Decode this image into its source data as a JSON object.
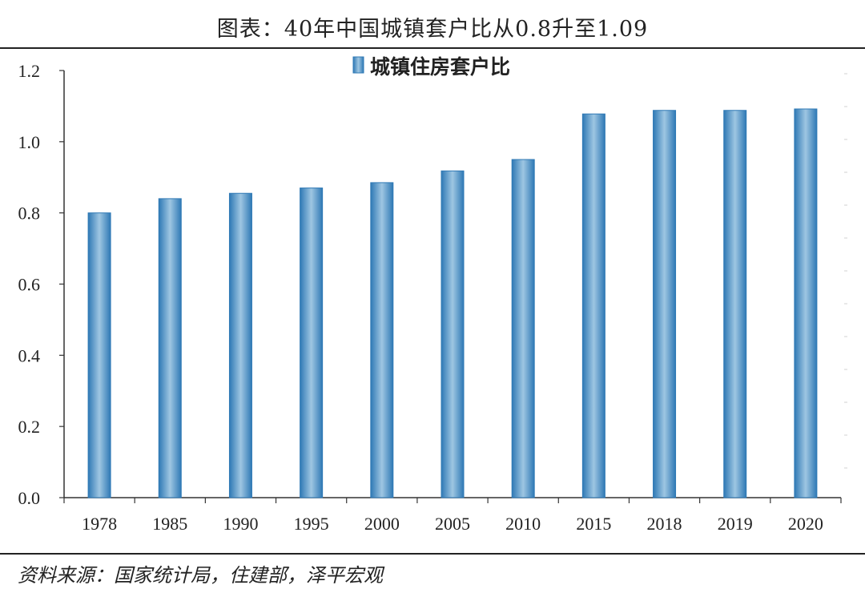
{
  "title": "图表：40年中国城镇套户比从0.8升至1.09",
  "source": "资料来源：国家统计局，住建部，泽平宏观",
  "chart_data": {
    "type": "bar",
    "categories": [
      "1978",
      "1985",
      "1990",
      "1995",
      "2000",
      "2005",
      "2010",
      "2015",
      "2018",
      "2019",
      "2020"
    ],
    "series": [
      {
        "name": "城镇住房套户比",
        "values": [
          0.8,
          0.84,
          0.855,
          0.87,
          0.885,
          0.918,
          0.95,
          1.078,
          1.088,
          1.088,
          1.092
        ]
      }
    ],
    "ylim": [
      0,
      1.2
    ],
    "yticks": [
      "0.0",
      "0.2",
      "0.4",
      "0.6",
      "0.8",
      "1.0",
      "1.2"
    ],
    "legend_position": "top",
    "grid": false,
    "bar_color": "#3a86c0"
  }
}
